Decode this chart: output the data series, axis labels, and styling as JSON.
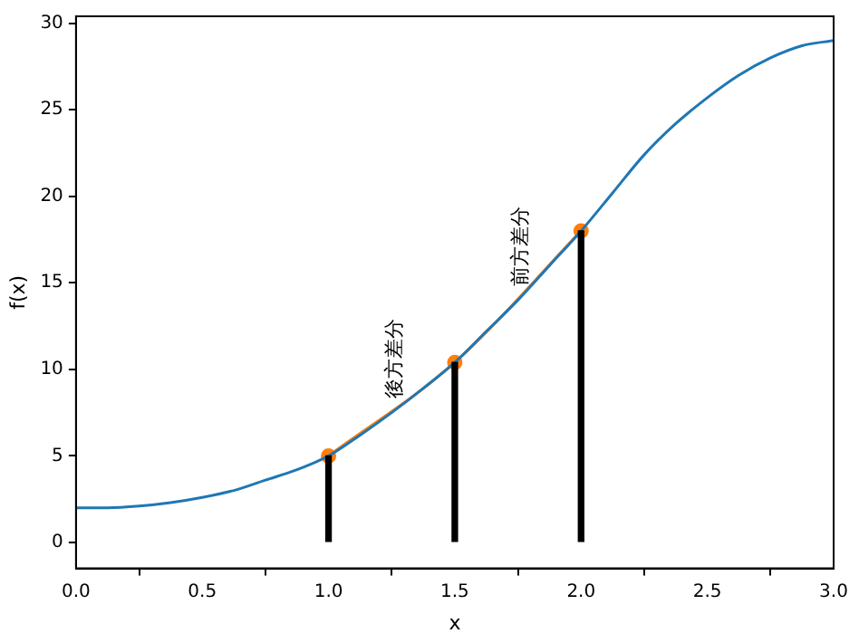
{
  "chart_data": {
    "type": "line",
    "xlabel": "x",
    "ylabel": "f(x)",
    "xlim": [
      0,
      3
    ],
    "ylim": [
      -1.5,
      30.4
    ],
    "xticks": [
      {
        "value": 0,
        "label": "0.0"
      },
      {
        "value": 0.5,
        "label": "0.5"
      },
      {
        "value": 1,
        "label": "1.0"
      },
      {
        "value": 1.5,
        "label": "1.5"
      },
      {
        "value": 2,
        "label": "2.0"
      },
      {
        "value": 2.5,
        "label": "2.5"
      },
      {
        "value": 3,
        "label": "3.0"
      }
    ],
    "yticks": [
      0,
      5,
      10,
      15,
      20,
      25,
      30
    ],
    "grid": false,
    "legend": false,
    "series": [
      {
        "color": "#1f77b4",
        "marker": "none",
        "x": [
          0,
          0.125,
          0.25,
          0.375,
          0.5,
          0.625,
          0.75,
          0.875,
          1,
          1.125,
          1.25,
          1.375,
          1.5,
          1.625,
          1.75,
          1.875,
          2,
          2.125,
          2.25,
          2.375,
          2.5,
          2.625,
          2.75,
          2.875,
          3
        ],
        "values": [
          2,
          2.0,
          2.1,
          2.3,
          2.6,
          3.0,
          3.6,
          4.2,
          5,
          6.2,
          7.5,
          8.9,
          10.4,
          12.2,
          14,
          16,
          18,
          20.2,
          22.4,
          24.2,
          25.7,
          27,
          28,
          28.7,
          29
        ]
      },
      {
        "color": "#ff7f0e",
        "marker": "circle",
        "x": [
          1,
          1.5,
          2
        ],
        "values": [
          5,
          10.4,
          18
        ]
      },
      {
        "type": "bar",
        "color": "#000000",
        "x": [
          1,
          1.5,
          2
        ],
        "values": [
          5,
          10.4,
          18
        ]
      }
    ],
    "annotations": [
      "後方差分",
      "前方差分"
    ]
  }
}
